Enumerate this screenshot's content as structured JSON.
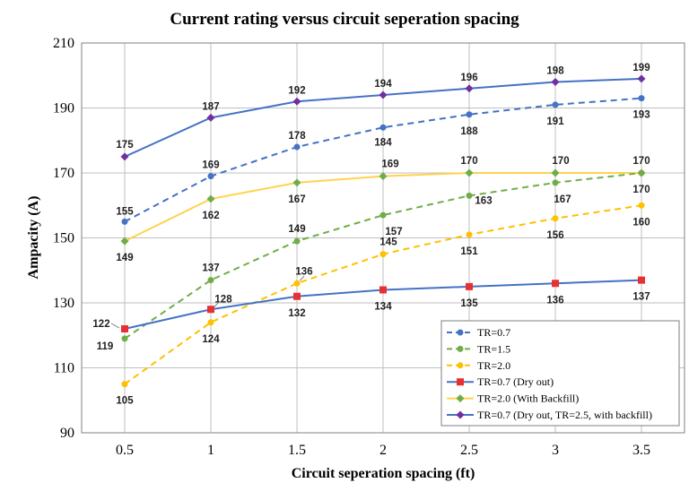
{
  "chart_data": {
    "type": "line",
    "title": "Current rating versus circuit seperation spacing",
    "xlabel": "Circuit seperation spacing (ft)",
    "ylabel": "Ampacity (A)",
    "x": [
      0.5,
      1,
      1.5,
      2,
      2.5,
      3,
      3.5
    ],
    "x_tick_labels": [
      "0.5",
      "1",
      "1.5",
      "2",
      "2.5",
      "3",
      "3.5"
    ],
    "ylim": [
      90,
      210
    ],
    "y_ticks": [
      90,
      110,
      130,
      150,
      170,
      190,
      210
    ],
    "grid": true,
    "legend_position": "bottom-right",
    "series": [
      {
        "name": "TR=0.7",
        "values": [
          155,
          169,
          178,
          184,
          188,
          191,
          193
        ],
        "color": "#4472C4",
        "dash": true,
        "marker": "circle"
      },
      {
        "name": "TR=1.5",
        "values": [
          119,
          137,
          149,
          157,
          163,
          167,
          170
        ],
        "color": "#70AD47",
        "dash": true,
        "marker": "circle"
      },
      {
        "name": "TR=2.0",
        "values": [
          105,
          124,
          136,
          145,
          151,
          156,
          160
        ],
        "color": "#FFC000",
        "dash": true,
        "marker": "circle"
      },
      {
        "name": "TR=0.7 (Dry out)",
        "values": [
          122,
          128,
          132,
          134,
          135,
          136,
          137
        ],
        "color": "#4472C4",
        "marker_color": "#E83030",
        "dash": false,
        "marker": "square"
      },
      {
        "name": "TR=2.0 (With Backfill)",
        "values": [
          149,
          162,
          167,
          169,
          170,
          170,
          170
        ],
        "color": "#FFD34D",
        "marker_color": "#70AD47",
        "dash": false,
        "marker": "diamond"
      },
      {
        "name": "TR=0.7 (Dry out, TR=2.5, with backfill)",
        "values": [
          175,
          187,
          192,
          194,
          196,
          198,
          199
        ],
        "color": "#4472C4",
        "marker_color": "#7030A0",
        "dash": false,
        "marker": "diamond"
      }
    ]
  }
}
